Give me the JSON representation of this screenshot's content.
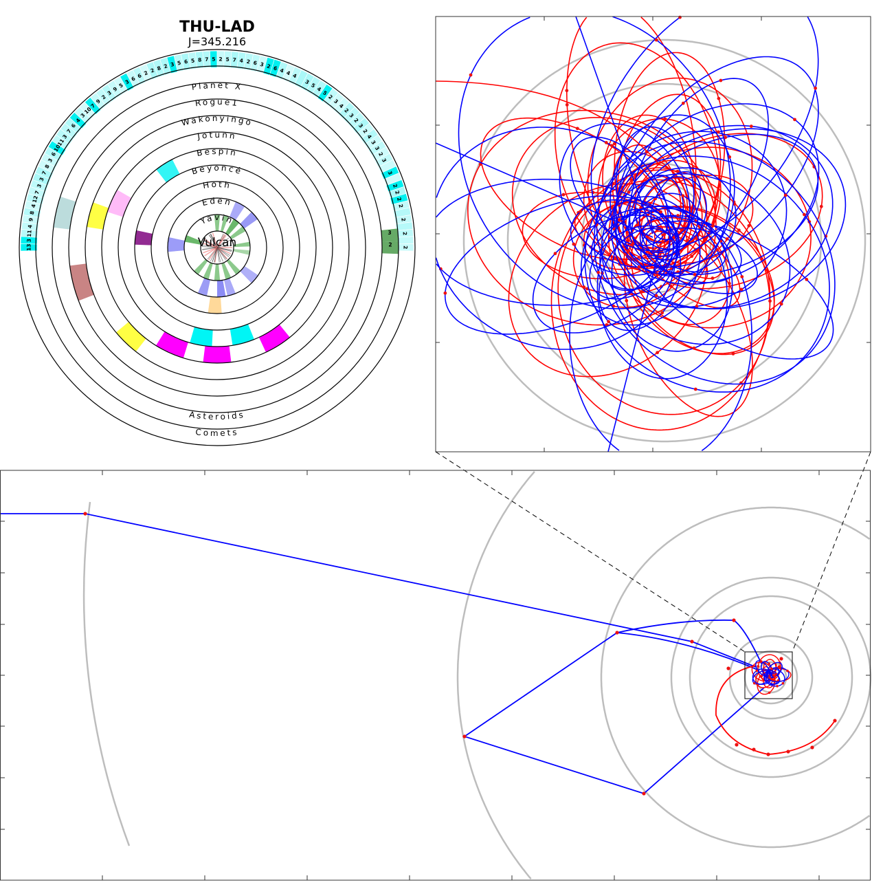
{
  "header": {
    "title": "THU-LAD",
    "score": "J=345.216"
  },
  "rings": [
    {
      "label": "Vulcan"
    },
    {
      "label": "Yavin"
    },
    {
      "label": "Eden"
    },
    {
      "label": "Hoth"
    },
    {
      "label": "Beyoncé"
    },
    {
      "label": "Bespin"
    },
    {
      "label": "Jotunn"
    },
    {
      "label": "Wakonyingo"
    },
    {
      "label": "Rogue1"
    },
    {
      "label": "Planet X"
    },
    {
      "label": "Asteroids"
    },
    {
      "label": "Comets"
    }
  ],
  "comet_counts": [
    "13",
    "3",
    "11",
    "4",
    "9",
    "8",
    "4",
    "12",
    "7",
    "3",
    "3",
    "7",
    "8",
    "3",
    "6",
    "10",
    "11",
    "3",
    "7",
    "6",
    "4",
    "3",
    "10",
    "7",
    "9",
    "2",
    "3",
    "9",
    "5",
    "3",
    "6",
    "6",
    "2",
    "2",
    "8",
    "2",
    "3",
    "5",
    "6",
    "5",
    "8",
    "7",
    "5",
    "2",
    "5",
    "7",
    "4",
    "2",
    "6",
    "3",
    "2",
    "6",
    "4",
    "4",
    "4",
    "",
    "3",
    "5",
    "4",
    "5",
    "2",
    "3",
    "4",
    "2",
    "3",
    "2",
    "3",
    "2",
    "4",
    "3",
    "3",
    "2",
    "3",
    "",
    "3",
    "",
    "2",
    "2",
    "2",
    "2",
    "",
    "2",
    "",
    "2",
    "",
    "2"
  ],
  "asteroid_counts": [
    "3",
    "2"
  ],
  "segments": [
    {
      "ring": 5,
      "from": -38,
      "to": -27,
      "color": "#33f5f5"
    },
    {
      "ring": 9,
      "from": -83,
      "to": -72,
      "color": "#bcdcdc"
    },
    {
      "ring": 7,
      "from": -81,
      "to": -70,
      "color": "#ffff44"
    },
    {
      "ring": 6,
      "from": -72,
      "to": -60,
      "color": "#ffbbf8"
    },
    {
      "ring": 4,
      "from": -88,
      "to": -78,
      "color": "#922b92"
    },
    {
      "ring": 8,
      "from": -111,
      "to": -97,
      "color": "#c98484"
    },
    {
      "ring": 7,
      "from": -142,
      "to": -130,
      "color": "#ffff44"
    },
    {
      "ring": 6,
      "from": -163,
      "to": -148,
      "color": "#ff00ff"
    },
    {
      "ring": 5,
      "from": -177,
      "to": -164,
      "color": "#00f5f5"
    },
    {
      "ring": 6,
      "from": 173,
      "to": 187,
      "color": "#ff00ff"
    },
    {
      "ring": 5,
      "from": 158,
      "to": 171,
      "color": "#00f5f5"
    },
    {
      "ring": 6,
      "from": 141,
      "to": 155,
      "color": "#ff00ff"
    },
    {
      "ring": 3,
      "from": 176,
      "to": 188,
      "color": "#ffd99a"
    },
    {
      "ring": 2,
      "from": 192,
      "to": 203,
      "color": "#9c9cf5"
    },
    {
      "ring": 2,
      "from": 170,
      "to": 180,
      "color": "#8c8cf5"
    },
    {
      "ring": 2,
      "from": 158,
      "to": 168,
      "color": "#aaaaf8"
    },
    {
      "ring": 2,
      "from": 124,
      "to": 136,
      "color": "#b0b0f8"
    },
    {
      "ring": 2,
      "from": 22,
      "to": 34,
      "color": "#aaaaf8"
    },
    {
      "ring": 2,
      "from": 44,
      "to": 55,
      "color": "#9999f5"
    },
    {
      "ring": 2,
      "from": -95,
      "to": -78,
      "color": "#9c9cf8"
    },
    {
      "ring": 1,
      "from": -5,
      "to": 5,
      "color": "#8cc98c"
    },
    {
      "ring": 1,
      "from": 12,
      "to": 20,
      "color": "#8cc98c"
    },
    {
      "ring": 1,
      "from": 30,
      "to": 42,
      "color": "#6bb86b"
    },
    {
      "ring": 1,
      "from": 50,
      "to": 60,
      "color": "#8cc98c"
    },
    {
      "ring": 1,
      "from": 80,
      "to": 88,
      "color": "#8cc98c"
    },
    {
      "ring": 1,
      "from": 95,
      "to": 103,
      "color": "#a8d6a8"
    },
    {
      "ring": 1,
      "from": 135,
      "to": 145,
      "color": "#8cc98c"
    },
    {
      "ring": 1,
      "from": 155,
      "to": 165,
      "color": "#8cc98c"
    },
    {
      "ring": 1,
      "from": 175,
      "to": 185,
      "color": "#8cc98c"
    },
    {
      "ring": 1,
      "from": 195,
      "to": 205,
      "color": "#8cc98c"
    },
    {
      "ring": 1,
      "from": 215,
      "to": 225,
      "color": "#8cc98c"
    },
    {
      "ring": 1,
      "from": -80,
      "to": -68,
      "color": "#6bb86b"
    },
    {
      "ring": 10,
      "from": 84,
      "to": 88,
      "color": "#66aa66"
    },
    {
      "ring": 10,
      "from": 88,
      "to": 92,
      "color": "#66aa66"
    }
  ],
  "colors": {
    "spacecraft_a": "#0000ff",
    "spacecraft_b": "#ff0000",
    "orbit": "#bdbdbd",
    "comet_band": "#aaf8f8",
    "comet_band_strong": "#00f0f0"
  }
}
